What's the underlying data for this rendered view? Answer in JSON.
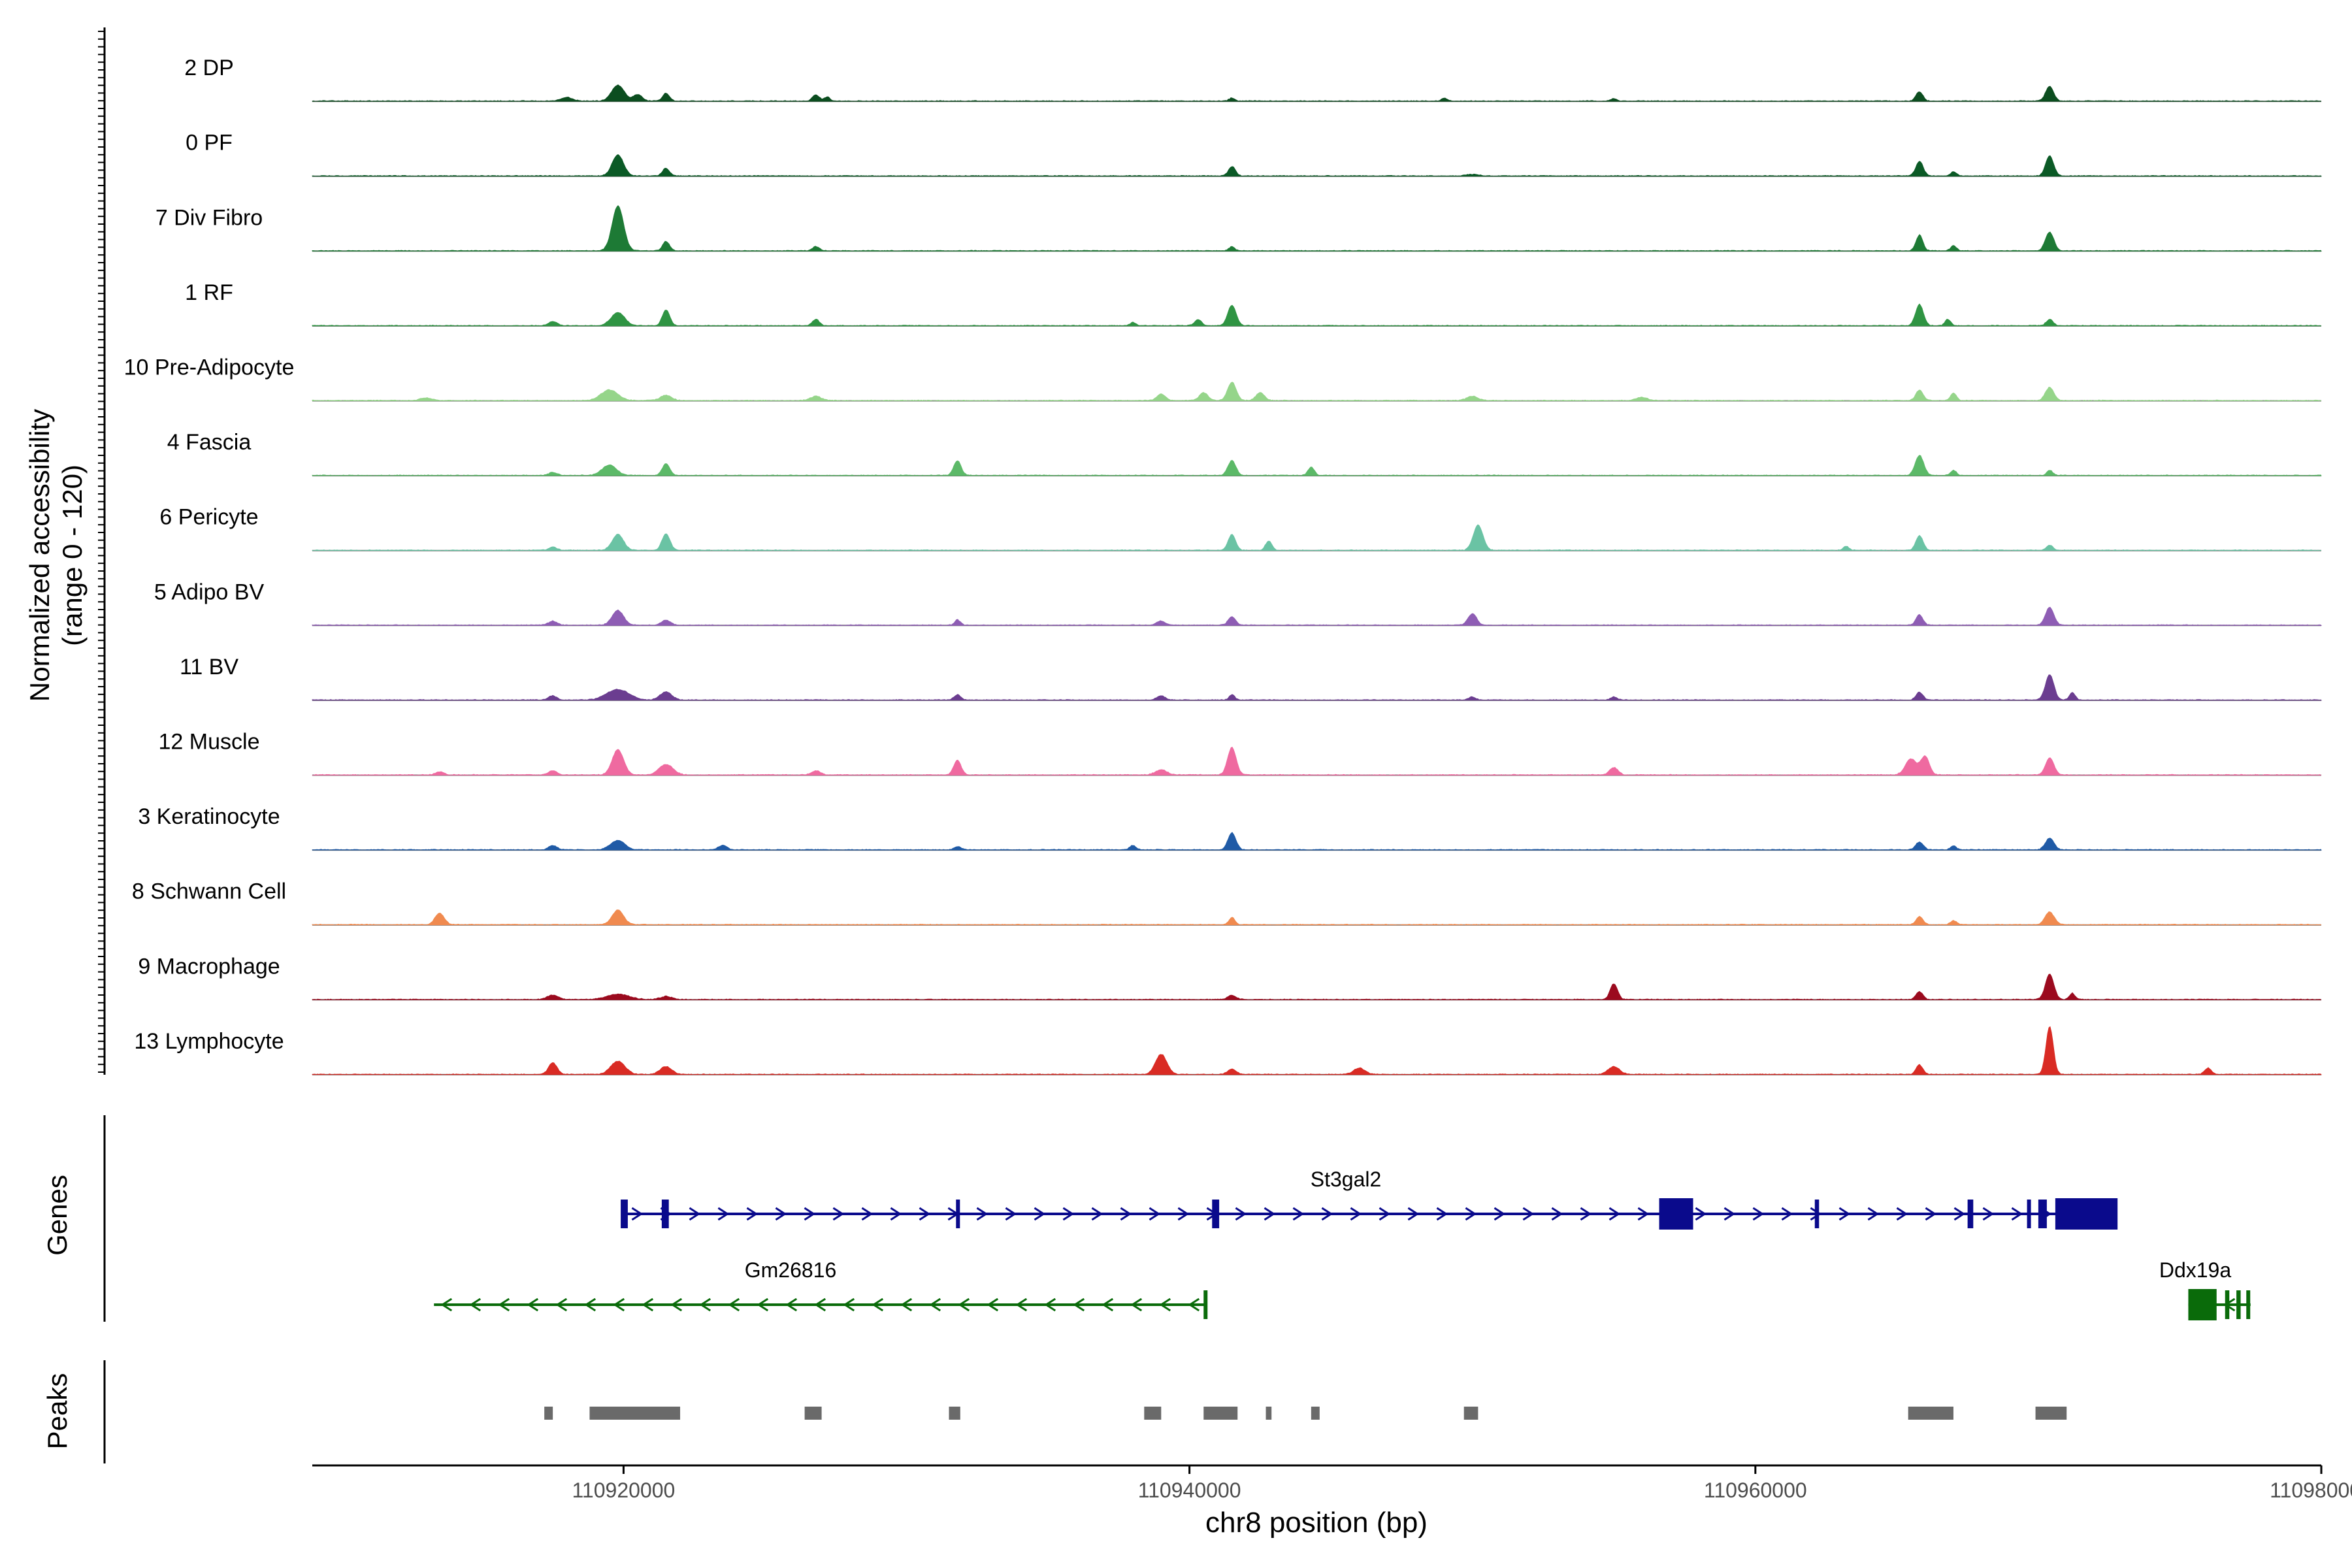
{
  "chart_data": {
    "type": "area",
    "title": "",
    "region": "chr8",
    "xlabel": "chr8 position (bp)",
    "xlim": [
      110909000,
      110980000
    ],
    "x_ticks": [
      110920000,
      110940000,
      110960000,
      110980000
    ],
    "x_tick_labels": [
      "110920000",
      "110940000",
      "110960000",
      "110980000"
    ],
    "ylabel_line1": "Normalized accessibility",
    "ylabel_line2": "(range 0 - 120)",
    "ylim": [
      0,
      120
    ],
    "track_panels": [
      "Genes",
      "Peaks"
    ],
    "series": [
      {
        "name": "2 DP",
        "color": "#0b4d1f",
        "peaks": [
          [
            110918000,
            7,
            200
          ],
          [
            110919800,
            30,
            220
          ],
          [
            110920500,
            12,
            160
          ],
          [
            110921500,
            15,
            120
          ],
          [
            110926800,
            12,
            120
          ],
          [
            110927200,
            8,
            100
          ],
          [
            110941500,
            6,
            100
          ],
          [
            110949000,
            5,
            100
          ],
          [
            110955000,
            5,
            100
          ],
          [
            110965800,
            18,
            120
          ],
          [
            110970400,
            28,
            140
          ]
        ]
      },
      {
        "name": "0 PF",
        "color": "#0b5a26",
        "peaks": [
          [
            110919800,
            40,
            200
          ],
          [
            110921500,
            15,
            120
          ],
          [
            110941500,
            18,
            120
          ],
          [
            110950000,
            3,
            200
          ],
          [
            110965800,
            28,
            130
          ],
          [
            110967000,
            8,
            100
          ],
          [
            110970400,
            38,
            140
          ]
        ]
      },
      {
        "name": "7 Div Fibro",
        "color": "#1d7a35",
        "peaks": [
          [
            110919800,
            85,
            200
          ],
          [
            110921500,
            18,
            120
          ],
          [
            110926800,
            8,
            120
          ],
          [
            110941500,
            8,
            100
          ],
          [
            110965800,
            30,
            120
          ],
          [
            110967000,
            10,
            100
          ],
          [
            110970400,
            35,
            150
          ]
        ]
      },
      {
        "name": "1 RF",
        "color": "#2f9443",
        "peaks": [
          [
            110917500,
            8,
            150
          ],
          [
            110919800,
            25,
            240
          ],
          [
            110921500,
            30,
            130
          ],
          [
            110926800,
            12,
            120
          ],
          [
            110941500,
            38,
            150
          ],
          [
            110940300,
            12,
            120
          ],
          [
            110938000,
            6,
            100
          ],
          [
            110965800,
            40,
            140
          ],
          [
            110966800,
            12,
            100
          ],
          [
            110970400,
            12,
            120
          ]
        ]
      },
      {
        "name": "10 Pre-Adipocyte",
        "color": "#95d58a",
        "peaks": [
          [
            110919500,
            20,
            300
          ],
          [
            110921500,
            10,
            200
          ],
          [
            110926800,
            8,
            200
          ],
          [
            110939000,
            12,
            150
          ],
          [
            110940500,
            15,
            150
          ],
          [
            110941500,
            35,
            150
          ],
          [
            110942500,
            15,
            150
          ],
          [
            110950000,
            8,
            200
          ],
          [
            110956000,
            6,
            200
          ],
          [
            110965800,
            20,
            130
          ],
          [
            110967000,
            15,
            100
          ],
          [
            110970400,
            25,
            150
          ],
          [
            110913000,
            5,
            200
          ]
        ]
      },
      {
        "name": "4 Fascia",
        "color": "#5cb968",
        "peaks": [
          [
            110917500,
            6,
            150
          ],
          [
            110919500,
            20,
            250
          ],
          [
            110921500,
            22,
            130
          ],
          [
            110931800,
            28,
            130
          ],
          [
            110941500,
            28,
            140
          ],
          [
            110944300,
            16,
            110
          ],
          [
            110965800,
            38,
            150
          ],
          [
            110967000,
            10,
            100
          ],
          [
            110970400,
            10,
            100
          ]
        ]
      },
      {
        "name": "6 Pericyte",
        "color": "#6ac3a4",
        "peaks": [
          [
            110917500,
            6,
            150
          ],
          [
            110919800,
            30,
            200
          ],
          [
            110921500,
            32,
            140
          ],
          [
            110941500,
            30,
            130
          ],
          [
            110942800,
            18,
            110
          ],
          [
            110950200,
            48,
            170
          ],
          [
            110963200,
            8,
            100
          ],
          [
            110965800,
            28,
            130
          ],
          [
            110970400,
            10,
            120
          ]
        ]
      },
      {
        "name": "5 Adipo BV",
        "color": "#8e5db4",
        "peaks": [
          [
            110917500,
            8,
            150
          ],
          [
            110919800,
            28,
            200
          ],
          [
            110921500,
            10,
            150
          ],
          [
            110931800,
            10,
            100
          ],
          [
            110939000,
            8,
            150
          ],
          [
            110941500,
            16,
            130
          ],
          [
            110950000,
            22,
            150
          ],
          [
            110965800,
            20,
            120
          ],
          [
            110970400,
            34,
            150
          ]
        ]
      },
      {
        "name": "11 BV",
        "color": "#6b3d90",
        "peaks": [
          [
            110917500,
            8,
            150
          ],
          [
            110919800,
            20,
            400
          ],
          [
            110921500,
            16,
            200
          ],
          [
            110931800,
            10,
            120
          ],
          [
            110939000,
            8,
            150
          ],
          [
            110941500,
            10,
            100
          ],
          [
            110950000,
            6,
            120
          ],
          [
            110955000,
            6,
            120
          ],
          [
            110965800,
            15,
            120
          ],
          [
            110970400,
            48,
            150
          ],
          [
            110971200,
            15,
            100
          ]
        ]
      },
      {
        "name": "12 Muscle",
        "color": "#ef6aa0",
        "peaks": [
          [
            110913500,
            6,
            150
          ],
          [
            110917500,
            8,
            150
          ],
          [
            110919800,
            48,
            200
          ],
          [
            110921500,
            20,
            250
          ],
          [
            110926800,
            8,
            150
          ],
          [
            110931800,
            28,
            130
          ],
          [
            110939000,
            10,
            200
          ],
          [
            110941500,
            52,
            150
          ],
          [
            110955000,
            14,
            150
          ],
          [
            110965500,
            30,
            200
          ],
          [
            110966000,
            35,
            150
          ],
          [
            110970400,
            32,
            150
          ]
        ]
      },
      {
        "name": "3 Keratinocyte",
        "color": "#1f5aa6",
        "peaks": [
          [
            110917500,
            8,
            150
          ],
          [
            110919800,
            18,
            250
          ],
          [
            110923500,
            8,
            150
          ],
          [
            110931800,
            6,
            120
          ],
          [
            110938000,
            8,
            120
          ],
          [
            110941500,
            32,
            140
          ],
          [
            110965800,
            15,
            130
          ],
          [
            110967000,
            8,
            100
          ],
          [
            110970400,
            22,
            150
          ]
        ]
      },
      {
        "name": "8 Schwann Cell",
        "color": "#f08a4f",
        "peaks": [
          [
            110913500,
            22,
            160
          ],
          [
            110919800,
            28,
            200
          ],
          [
            110941500,
            14,
            100
          ],
          [
            110965800,
            16,
            120
          ],
          [
            110967000,
            8,
            100
          ],
          [
            110970400,
            24,
            160
          ]
        ]
      },
      {
        "name": "9 Macrophage",
        "color": "#9b0a1e",
        "peaks": [
          [
            110917500,
            8,
            200
          ],
          [
            110919800,
            10,
            400
          ],
          [
            110921500,
            6,
            200
          ],
          [
            110941500,
            8,
            150
          ],
          [
            110955000,
            30,
            130
          ],
          [
            110965800,
            15,
            120
          ],
          [
            110970400,
            48,
            150
          ],
          [
            110971200,
            12,
            100
          ]
        ]
      },
      {
        "name": "13 Lymphocyte",
        "color": "#d92b24",
        "peaks": [
          [
            110917500,
            22,
            150
          ],
          [
            110919800,
            25,
            250
          ],
          [
            110921500,
            15,
            200
          ],
          [
            110939000,
            38,
            200
          ],
          [
            110941500,
            10,
            150
          ],
          [
            110946000,
            12,
            200
          ],
          [
            110955000,
            15,
            200
          ],
          [
            110965800,
            18,
            120
          ],
          [
            110970400,
            90,
            130
          ],
          [
            110976000,
            12,
            120
          ]
        ]
      }
    ],
    "genes": [
      {
        "name": "St3gal2",
        "strand": "+",
        "start": 110920000,
        "end": 110972500,
        "color": "#0a0a8c",
        "exons": [
          [
            110919900,
            110920150
          ],
          [
            110921350,
            110921600
          ],
          [
            110931750,
            110931850
          ],
          [
            110940800,
            110941050
          ],
          [
            110956600,
            110957800
          ],
          [
            110962100,
            110962250
          ],
          [
            110967500,
            110967700
          ],
          [
            110969600,
            110969650
          ],
          [
            110970000,
            110970300
          ],
          [
            110970600,
            110972800
          ]
        ]
      },
      {
        "name": "Gm26816",
        "strand": "-",
        "start": 110913300,
        "end": 110940600,
        "color": "#0a6b0a",
        "exons": [
          [
            110940500,
            110940600
          ]
        ]
      },
      {
        "name": "Ddx19a",
        "strand": "-",
        "start": 110975300,
        "end": 110977500,
        "color": "#0a6b0a",
        "exons": [
          [
            110975300,
            110976300
          ],
          [
            110976600,
            110976750
          ],
          [
            110977000,
            110977150
          ],
          [
            110977350,
            110977450
          ]
        ]
      }
    ],
    "peaks": [
      [
        110917200,
        110917500
      ],
      [
        110918800,
        110922000
      ],
      [
        110926400,
        110927000
      ],
      [
        110931500,
        110931900
      ],
      [
        110938400,
        110939000
      ],
      [
        110940500,
        110941700
      ],
      [
        110942700,
        110942900
      ],
      [
        110944300,
        110944600
      ],
      [
        110949700,
        110950200
      ],
      [
        110965400,
        110967000
      ],
      [
        110969900,
        110971000
      ]
    ]
  }
}
